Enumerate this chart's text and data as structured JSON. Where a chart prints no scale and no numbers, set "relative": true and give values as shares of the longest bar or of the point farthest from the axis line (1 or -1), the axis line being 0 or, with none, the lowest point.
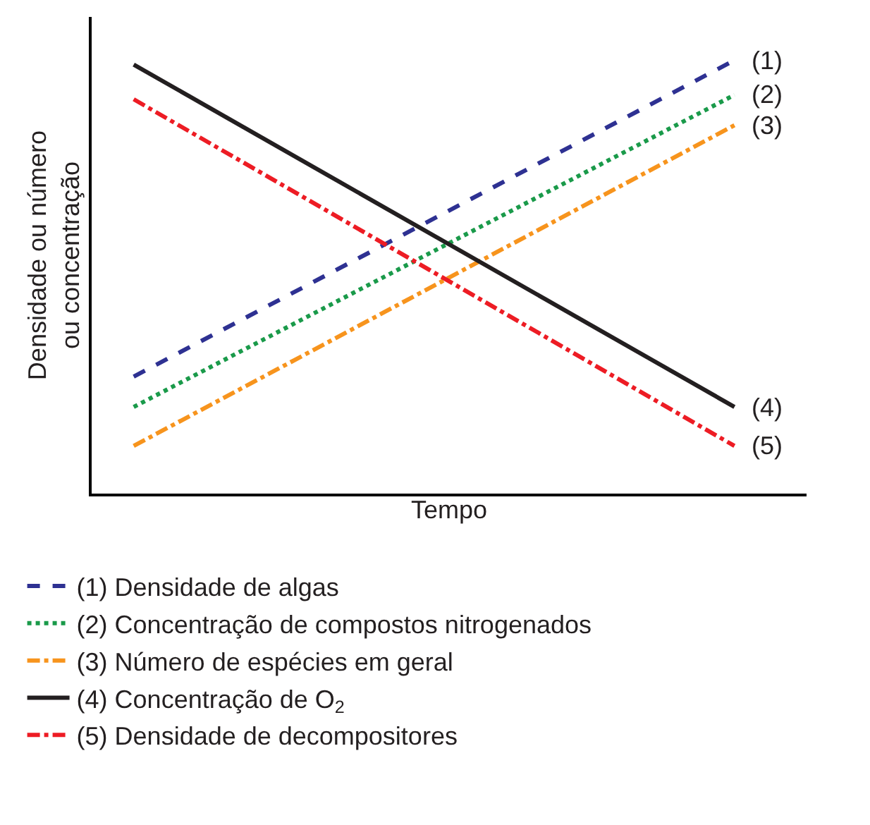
{
  "chart_data": {
    "type": "line",
    "relative": true,
    "xlabel": "Tempo",
    "ylabel": "Densidade ou número ou concentração",
    "categories": [
      null,
      null
    ],
    "legend": "bottom",
    "grid": false,
    "marker": "none",
    "series": [
      {
        "name": "(1) Densidade de algas",
        "color": "#2e3192",
        "line_style": "dashed",
        "values": [
          0.27,
          1.0
        ]
      },
      {
        "name": "(2) Concentração de compostos nitrogenados",
        "color": "#1a9a4a",
        "line_style": "dotted",
        "values": [
          0.2,
          0.92
        ]
      },
      {
        "name": "(3) Número de espécies em geral",
        "color": "#f7941d",
        "line_style": "dashdot",
        "values": [
          0.11,
          0.85
        ]
      },
      {
        "name": "(4) Concentração de O$_{2}$",
        "color": "#231f20",
        "line_style": "solid",
        "values": [
          0.99,
          0.2
        ]
      },
      {
        "name": "(5) Densidade de decompositores",
        "color": "#ed1c24",
        "line_style": "dashdot",
        "values": [
          0.91,
          0.11
        ]
      }
    ],
    "annotations": [
      "(1)",
      "(2)",
      "(3)",
      "(4)",
      "(5)"
    ]
  }
}
